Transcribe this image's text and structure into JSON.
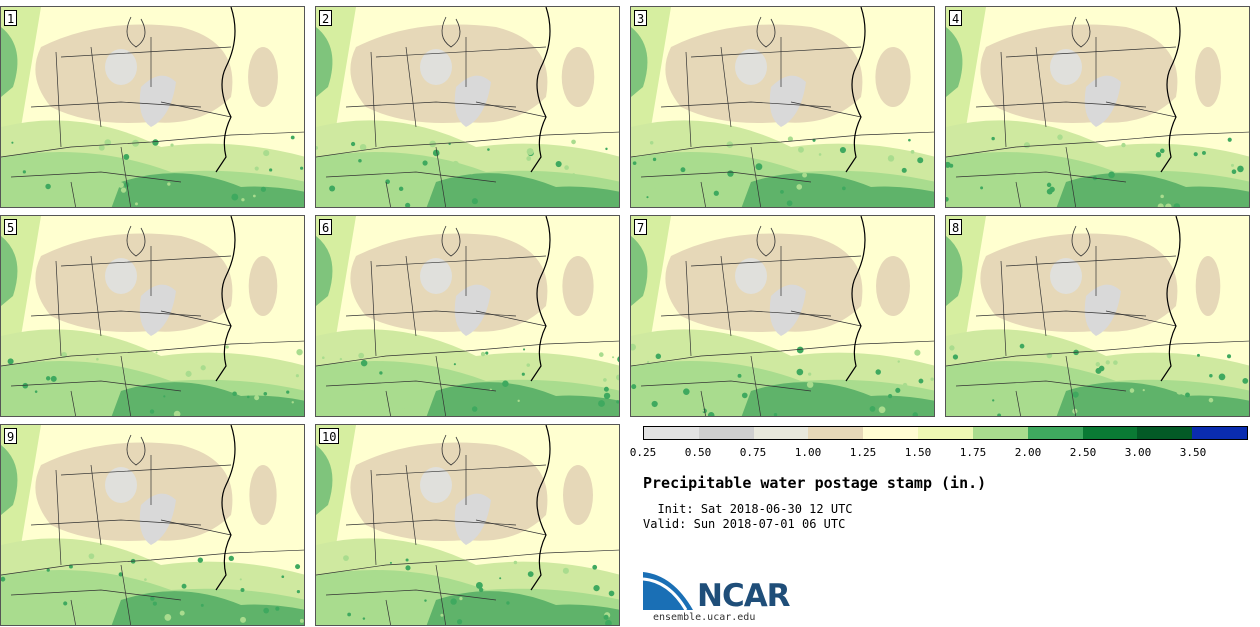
{
  "figure": {
    "title": "Precipitable water postage stamp (in.)",
    "init_label": "  Init:",
    "init_value": "Sat 2018-06-30 12 UTC",
    "valid_label": "Valid:",
    "valid_value": "Sun 2018-07-01 06 UTC"
  },
  "panels": [
    {
      "label": "1"
    },
    {
      "label": "2"
    },
    {
      "label": "3"
    },
    {
      "label": "4"
    },
    {
      "label": "5"
    },
    {
      "label": "6"
    },
    {
      "label": "7"
    },
    {
      "label": "8"
    },
    {
      "label": "9"
    },
    {
      "label": "10"
    }
  ],
  "colorbar": {
    "ticks": [
      "0.25",
      "0.50",
      "0.75",
      "1.00",
      "1.25",
      "1.50",
      "1.75",
      "2.00",
      "2.50",
      "3.00",
      "3.50"
    ],
    "colors": [
      "#e2e2e2",
      "#cfcfcf",
      "#e8e8dc",
      "#e6d8b8",
      "#fffcd2",
      "#eef8b4",
      "#a9dc8e",
      "#3fa95f",
      "#0a7a34",
      "#035a26",
      "#0a2cb0"
    ]
  },
  "logo": {
    "brand": "NCAR",
    "url": "ensemble.ucar.edu"
  }
}
